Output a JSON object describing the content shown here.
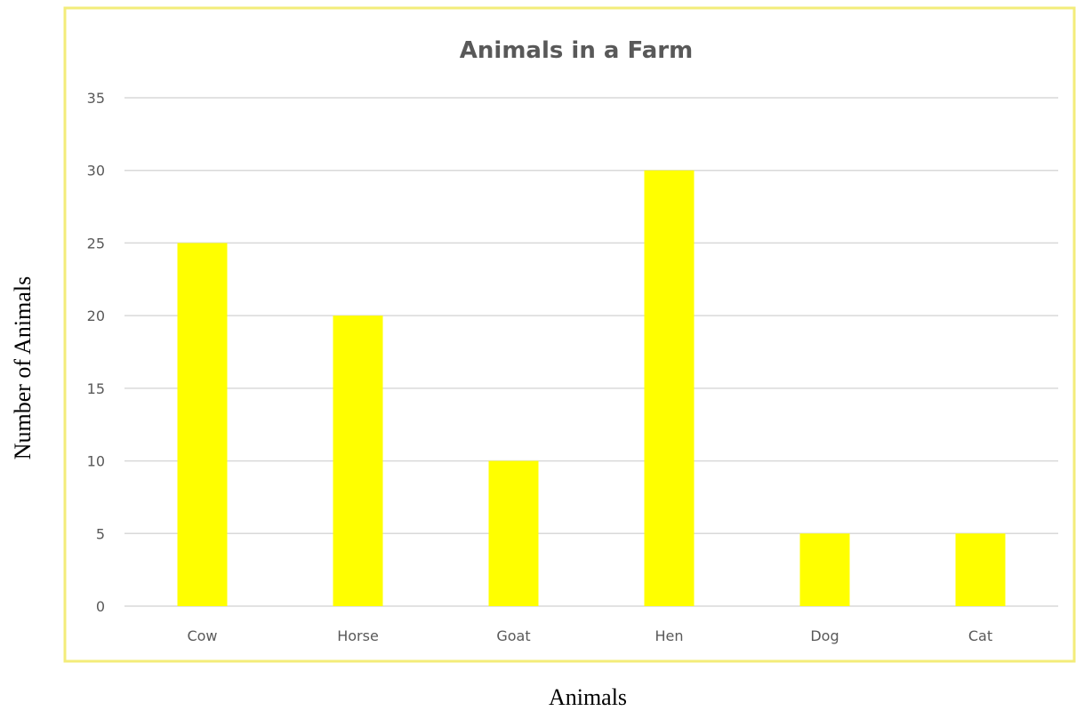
{
  "chart_data": {
    "type": "bar",
    "title": "Animals in a Farm",
    "xlabel": "Animals",
    "ylabel": "Number of Animals",
    "categories": [
      "Cow",
      "Horse",
      "Goat",
      "Hen",
      "Dog",
      "Cat"
    ],
    "values": [
      25,
      20,
      10,
      30,
      5,
      5
    ],
    "ylim": [
      0,
      35
    ],
    "yticks": [
      "0",
      "5",
      "10",
      "15",
      "20",
      "25",
      "30",
      "35"
    ],
    "grid": true,
    "legend": "none",
    "colors": {
      "bar": "#FFFF00",
      "frame": "#F3EC7A",
      "gridline": "#D9D9D9",
      "text": "#595959"
    }
  }
}
